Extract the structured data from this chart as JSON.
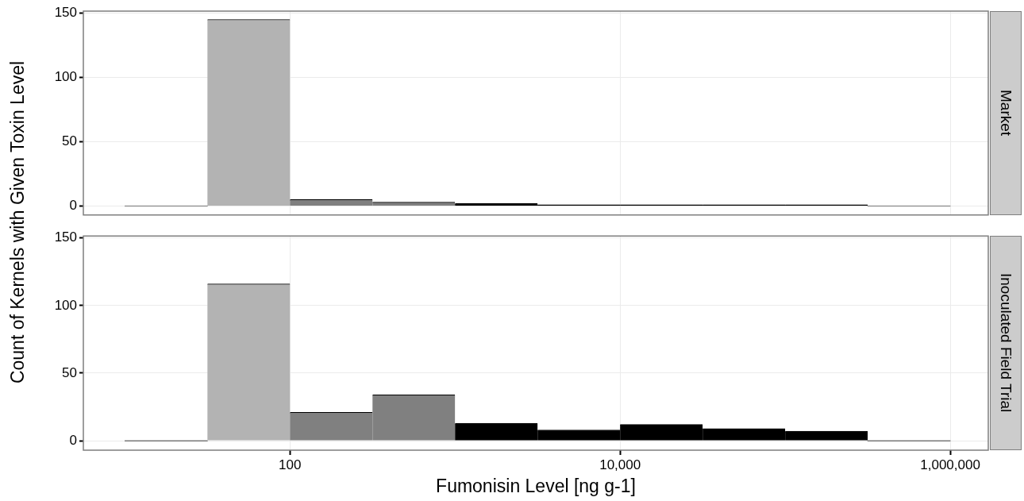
{
  "chart_data": [
    {
      "type": "histogram",
      "annotations": [
        "Market"
      ],
      "ylabel": "Count of Kernels with Given Toxin Level",
      "bins": [
        10,
        31.62,
        100,
        316.2,
        1000,
        3162,
        10000,
        31623,
        100000,
        316228,
        1000000
      ],
      "values": [
        0,
        145,
        5,
        3,
        2,
        1,
        1,
        1,
        1,
        0
      ],
      "colors": [
        "#000000",
        "#b3b3b3",
        "#808080",
        "#808080",
        "#000000",
        "#000000",
        "#000000",
        "#000000",
        "#000000",
        "#000000"
      ],
      "log": "x",
      "xlim": [
        5.6,
        1700000
      ],
      "xticks": [
        {
          "value": 100,
          "label": null
        },
        {
          "value": 10000,
          "label": null
        },
        {
          "value": 1000000,
          "label": null
        }
      ],
      "ylim": [
        -7,
        151.5
      ],
      "yticks": [
        0,
        50,
        100,
        150
      ],
      "grid": true,
      "tick_labels": "y"
    },
    {
      "type": "histogram",
      "annotations": [
        "Inoculated Field Trial"
      ],
      "xlabel": "Fumonisin Level [ng g-1]",
      "bins": [
        10,
        31.62,
        100,
        316.2,
        1000,
        3162,
        10000,
        31623,
        100000,
        316228,
        1000000
      ],
      "values": [
        0,
        116,
        21,
        34,
        13,
        8,
        12,
        9,
        7,
        0
      ],
      "colors": [
        "#000000",
        "#b3b3b3",
        "#808080",
        "#808080",
        "#000000",
        "#000000",
        "#000000",
        "#000000",
        "#000000",
        "#000000"
      ],
      "log": "x",
      "xlim": [
        5.6,
        1700000
      ],
      "xticks": [
        {
          "value": 100,
          "label": "100"
        },
        {
          "value": 10000,
          "label": "10,000"
        },
        {
          "value": 1000000,
          "label": "1,000,000"
        }
      ],
      "ylim": [
        -7,
        151.5
      ],
      "yticks": [
        0,
        50,
        100,
        150
      ],
      "grid": true
    }
  ]
}
